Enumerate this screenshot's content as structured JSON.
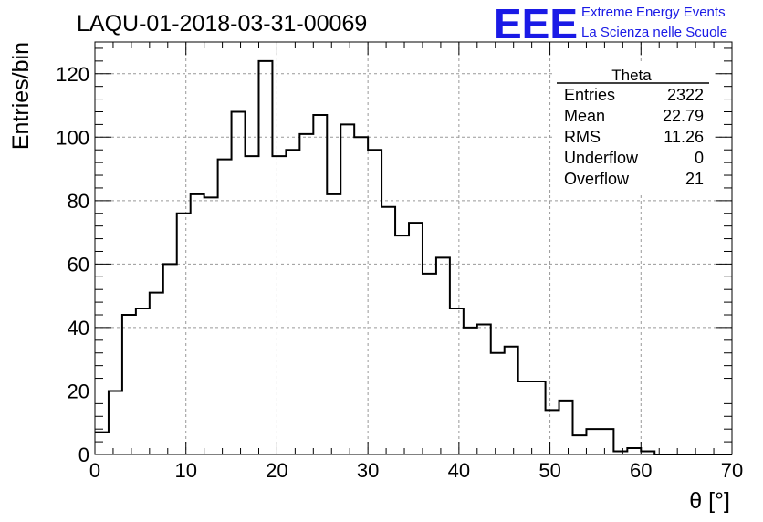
{
  "chart_data": {
    "type": "histogram",
    "title": "LAQU-01-2018-03-31-00069",
    "xlabel": "θ [°]",
    "ylabel": "Entries/bin",
    "xlim": [
      0,
      70
    ],
    "ylim": [
      0,
      130
    ],
    "grid": true,
    "bin_width": 1.5,
    "x_ticks": [
      0,
      10,
      20,
      30,
      40,
      50,
      60,
      70
    ],
    "y_ticks": [
      0,
      20,
      40,
      60,
      80,
      100,
      120
    ],
    "bin_edges_start": 0,
    "values": [
      7,
      20,
      44,
      46,
      51,
      60,
      76,
      82,
      81,
      93,
      108,
      94,
      124,
      94,
      96,
      101,
      107,
      82,
      104,
      100,
      96,
      78,
      69,
      73,
      57,
      62,
      46,
      40,
      41,
      32,
      34,
      23,
      23,
      14,
      17,
      6,
      8,
      8,
      1,
      2,
      1,
      0,
      0,
      0,
      0,
      0,
      0
    ],
    "stats_box": {
      "name": "Theta",
      "rows": [
        {
          "label": "Entries",
          "value": "2322"
        },
        {
          "label": "Mean",
          "value": "22.79"
        },
        {
          "label": "RMS",
          "value": "11.26"
        },
        {
          "label": "Underflow",
          "value": "0"
        },
        {
          "label": "Overflow",
          "value": "21"
        }
      ]
    }
  },
  "logo": {
    "mark": "EEE",
    "line1": "Extreme Energy Events",
    "line2": "La Scienza nelle Scuole",
    "color": "#1a1ae6"
  }
}
